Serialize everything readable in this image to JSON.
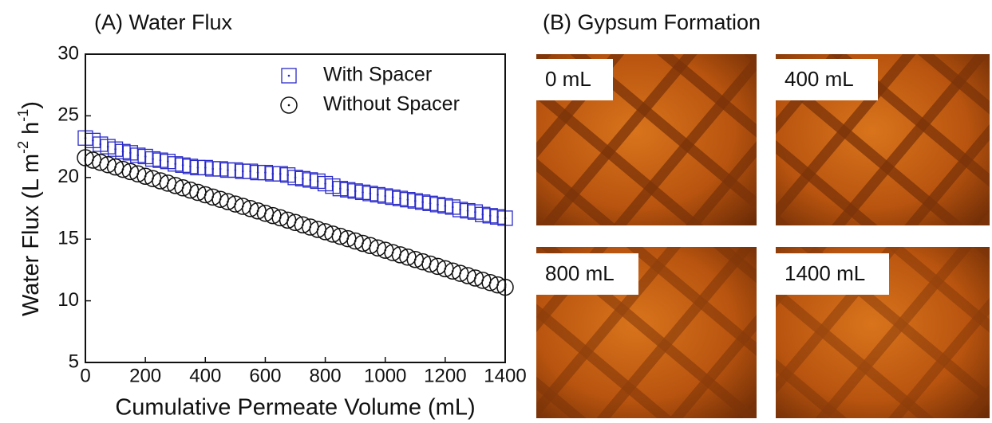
{
  "chart_data": {
    "type": "scatter",
    "title": "(A) Water Flux",
    "xlabel": "Cumulative Permeate Volume (mL)",
    "ylabel_parts": [
      "Water Flux (L m",
      "-2",
      " h",
      "-1",
      ")"
    ],
    "xlim": [
      0,
      1400
    ],
    "ylim": [
      5,
      30
    ],
    "xticks": [
      0,
      200,
      400,
      600,
      800,
      1000,
      1200,
      1400
    ],
    "yticks": [
      5,
      10,
      15,
      20,
      25,
      30
    ],
    "grid": false,
    "legend": "upper right",
    "x": [
      0,
      25,
      50,
      75,
      100,
      125,
      150,
      175,
      200,
      225,
      250,
      275,
      300,
      325,
      350,
      375,
      400,
      425,
      450,
      475,
      500,
      525,
      550,
      575,
      600,
      625,
      650,
      675,
      700,
      725,
      750,
      775,
      800,
      825,
      850,
      875,
      900,
      925,
      950,
      975,
      1000,
      1025,
      1050,
      1075,
      1100,
      1125,
      1150,
      1175,
      1200,
      1225,
      1250,
      1275,
      1300,
      1325,
      1350,
      1375,
      1400
    ],
    "series": [
      {
        "name": "With Spacer",
        "color": "#2a2ac8",
        "marker": "square",
        "values": [
          23.2,
          23.0,
          22.7,
          22.5,
          22.3,
          22.1,
          22.0,
          21.8,
          21.7,
          21.5,
          21.4,
          21.3,
          21.1,
          21.0,
          20.9,
          20.8,
          20.8,
          20.7,
          20.7,
          20.6,
          20.6,
          20.5,
          20.5,
          20.4,
          20.4,
          20.3,
          20.3,
          20.2,
          20.0,
          19.9,
          19.8,
          19.7,
          19.5,
          19.3,
          19.1,
          19.0,
          18.9,
          18.8,
          18.7,
          18.6,
          18.5,
          18.4,
          18.3,
          18.2,
          18.1,
          18.0,
          17.9,
          17.8,
          17.7,
          17.6,
          17.4,
          17.3,
          17.2,
          17.0,
          16.9,
          16.8,
          16.7
        ]
      },
      {
        "name": "Without Spacer",
        "color": "#111111",
        "marker": "circle",
        "values": [
          21.6,
          21.41,
          21.23,
          21.04,
          20.85,
          20.66,
          20.48,
          20.29,
          20.1,
          19.91,
          19.73,
          19.54,
          19.35,
          19.16,
          18.98,
          18.79,
          18.6,
          18.41,
          18.23,
          18.04,
          17.85,
          17.66,
          17.48,
          17.29,
          17.1,
          16.91,
          16.73,
          16.54,
          16.35,
          16.16,
          15.98,
          15.79,
          15.6,
          15.41,
          15.23,
          15.04,
          14.85,
          14.66,
          14.48,
          14.29,
          14.1,
          13.91,
          13.73,
          13.54,
          13.35,
          13.16,
          12.98,
          12.79,
          12.6,
          12.41,
          12.23,
          12.04,
          11.85,
          11.66,
          11.48,
          11.29,
          11.1
        ]
      }
    ]
  },
  "panel_b": {
    "title": "(B) Gypsum Formation",
    "images": [
      "0 mL",
      "400 mL",
      "800 mL",
      "1400 mL"
    ]
  }
}
